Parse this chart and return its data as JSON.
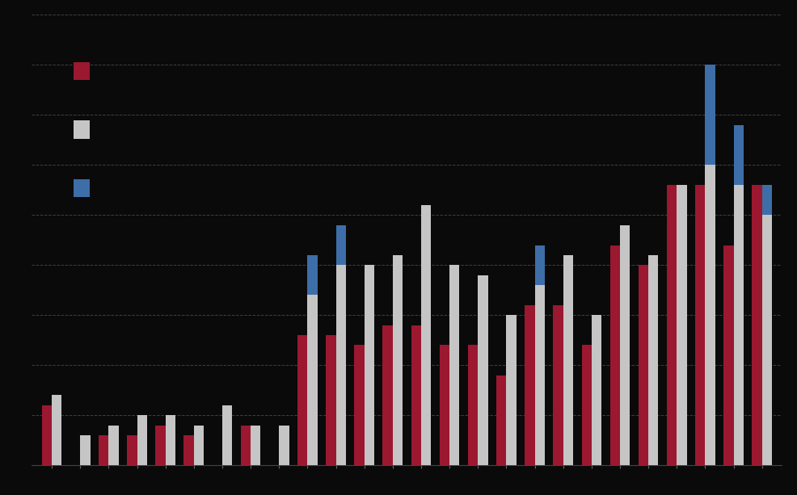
{
  "red": [
    6,
    0,
    3,
    3,
    4,
    3,
    0,
    4,
    0,
    13,
    13,
    12,
    14,
    14,
    12,
    12,
    9,
    16,
    16,
    12,
    22,
    20,
    28,
    28,
    22,
    28
  ],
  "gray": [
    7,
    3,
    4,
    5,
    5,
    4,
    6,
    4,
    4,
    17,
    20,
    20,
    21,
    26,
    20,
    19,
    15,
    18,
    21,
    15,
    24,
    21,
    28,
    30,
    28,
    25
  ],
  "blue_on_gray": [
    0,
    0,
    0,
    0,
    0,
    0,
    0,
    0,
    0,
    4,
    4,
    0,
    0,
    0,
    0,
    0,
    0,
    4,
    0,
    0,
    0,
    0,
    0,
    10,
    6,
    3
  ],
  "red_color": "#9b1830",
  "gray_color": "#c5c5c5",
  "blue_color": "#3d6ea8",
  "bg_color": "#0a0a0a",
  "grid_color": "#555555",
  "bar_width": 0.35,
  "ylim": 45,
  "n_groups": 26
}
